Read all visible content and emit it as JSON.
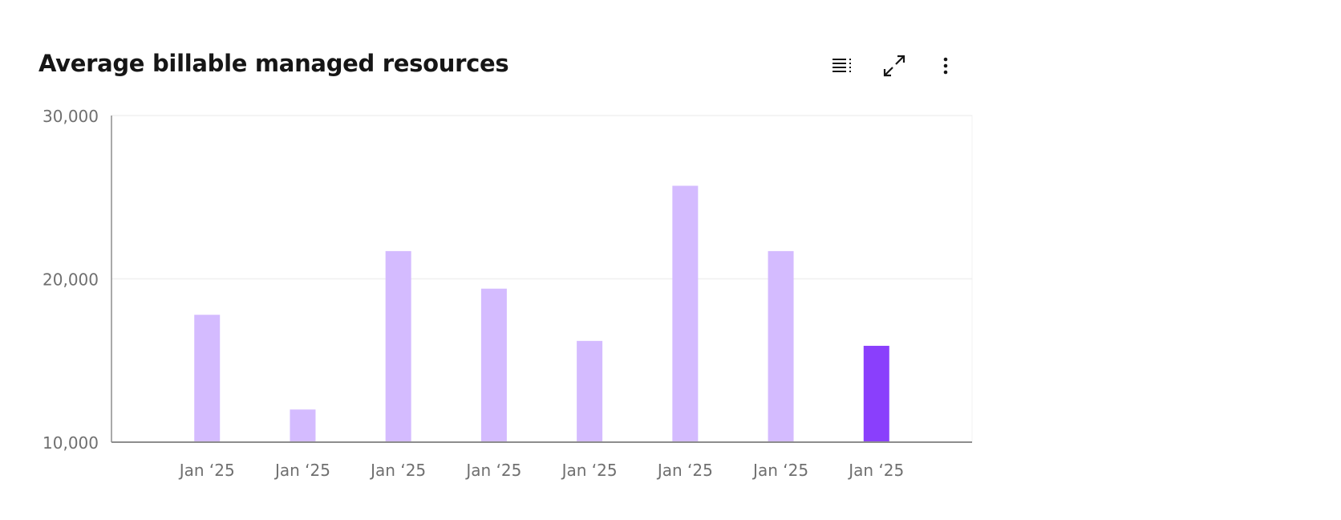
{
  "header": {
    "title": "Average billable managed resources",
    "icons": [
      "table-view-icon",
      "maximize-icon",
      "overflow-menu-icon"
    ]
  },
  "colors": {
    "bar": "#d4bbff",
    "bar_highlight": "#8a3ffc",
    "grid": "#f0f0f0",
    "axis": "#8d8d8d",
    "tick_text": "#6f6f6f"
  },
  "chart_data": {
    "type": "bar",
    "title": "Average billable managed resources",
    "categories": [
      "Jan ‘25",
      "Jan ‘25",
      "Jan ‘25",
      "Jan ‘25",
      "Jan ‘25",
      "Jan ‘25",
      "Jan ‘25",
      "Jan ‘25"
    ],
    "values": [
      17800,
      12000,
      21700,
      19400,
      16200,
      25700,
      21700,
      15900
    ],
    "highlight_index": 7,
    "ylim": [
      10000,
      30000
    ],
    "yticks": [
      "10,000",
      "20,000",
      "30,000"
    ],
    "ytick_values": [
      10000,
      20000,
      30000
    ],
    "grid": true,
    "xlabel": "",
    "ylabel": ""
  }
}
